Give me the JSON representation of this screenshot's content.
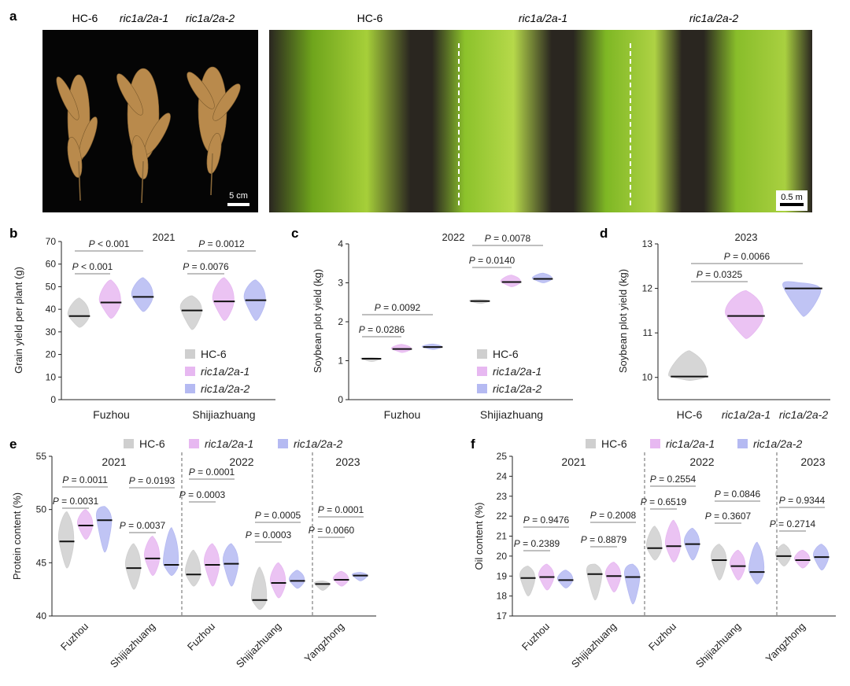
{
  "colors": {
    "hc6": "#cfcfcf",
    "ric1": "#e7b8f1",
    "ric2": "#b5baf2",
    "median": "#111111"
  },
  "panel_a": {
    "letter": "a",
    "photo1_labels": [
      "HC-6",
      "ric1a/2a-1",
      "ric1a/2a-2"
    ],
    "photo1_scale": "5 cm",
    "photo2_labels": [
      "HC-6",
      "ric1a/2a-1",
      "ric1a/2a-2"
    ],
    "photo2_scale": "0.5 m"
  },
  "chart_data": [
    {
      "panel": "b",
      "type": "violin",
      "title": "2021",
      "ylabel": "Grain yield per plant (g)",
      "ylim": [
        0,
        70
      ],
      "yticks": [
        "0",
        "10",
        "20",
        "30",
        "40",
        "50",
        "60",
        "70"
      ],
      "categories": [
        "Fuzhou",
        "Shijiazhuang"
      ],
      "series": [
        {
          "name": "HC-6",
          "medians": [
            37,
            39.5
          ],
          "mins": [
            32,
            31
          ],
          "maxs": [
            45,
            46
          ]
        },
        {
          "name": "ric1a/2a-1",
          "medians": [
            43,
            43.5
          ],
          "mins": [
            36,
            35
          ],
          "maxs": [
            53,
            54
          ]
        },
        {
          "name": "ric1a/2a-2",
          "medians": [
            45.5,
            44
          ],
          "mins": [
            39,
            35
          ],
          "maxs": [
            54,
            53
          ]
        }
      ],
      "pvalues": [
        {
          "cat": 0,
          "text": "P < 0.001",
          "to": 1
        },
        {
          "cat": 0,
          "text": "P < 0.001",
          "to": 2
        },
        {
          "cat": 1,
          "text": "P = 0.0076",
          "to": 1
        },
        {
          "cat": 1,
          "text": "P = 0.0012",
          "to": 2
        }
      ],
      "legend": [
        "HC-6",
        "ric1a/2a-1",
        "ric1a/2a-2"
      ]
    },
    {
      "panel": "c",
      "type": "violin",
      "title": "2022",
      "ylabel": "Soybean plot yield (kg)",
      "ylim": [
        0,
        4
      ],
      "yticks": [
        "0",
        "1",
        "2",
        "3",
        "4"
      ],
      "categories": [
        "Fuzhou",
        "Shijiazhuang"
      ],
      "series": [
        {
          "name": "HC-6",
          "medians": [
            1.05,
            2.53
          ],
          "mins": [
            0.98,
            2.47
          ],
          "maxs": [
            1.08,
            2.57
          ]
        },
        {
          "name": "ric1a/2a-1",
          "medians": [
            1.3,
            3.02
          ],
          "mins": [
            1.21,
            2.9
          ],
          "maxs": [
            1.42,
            3.2
          ]
        },
        {
          "name": "ric1a/2a-2",
          "medians": [
            1.35,
            3.1
          ],
          "mins": [
            1.29,
            3.0
          ],
          "maxs": [
            1.43,
            3.25
          ]
        }
      ],
      "pvalues": [
        {
          "cat": 0,
          "text": "P = 0.0286",
          "to": 1
        },
        {
          "cat": 0,
          "text": "P = 0.0092",
          "to": 2
        },
        {
          "cat": 1,
          "text": "P = 0.0140",
          "to": 1
        },
        {
          "cat": 1,
          "text": "P = 0.0078",
          "to": 2
        }
      ],
      "legend": [
        "HC-6",
        "ric1a/2a-1",
        "ric1a/2a-2"
      ]
    },
    {
      "panel": "d",
      "type": "violin",
      "title": "2023",
      "ylabel": "Soybean plot yield (kg)",
      "ylim": [
        9.5,
        13
      ],
      "yticks": [
        "10",
        "11",
        "12",
        "13"
      ],
      "categories": [
        "HC-6",
        "ric1a/2a-1",
        "ric1a/2a-2"
      ],
      "series": [
        {
          "name": "HC-6",
          "medians": [
            10.02
          ],
          "mins": [
            9.93
          ],
          "maxs": [
            10.6
          ]
        },
        {
          "name": "ric1a/2a-1",
          "medians": [
            11.38
          ],
          "mins": [
            10.87
          ],
          "maxs": [
            11.95
          ]
        },
        {
          "name": "ric1a/2a-2",
          "medians": [
            12.0
          ],
          "mins": [
            11.37
          ],
          "maxs": [
            12.12
          ]
        }
      ],
      "pvalues": [
        {
          "text": "P = 0.0325",
          "to": 1
        },
        {
          "text": "P = 0.0066",
          "to": 2
        }
      ]
    },
    {
      "panel": "e",
      "type": "violin",
      "ylabel": "Protein content (%)",
      "ylim": [
        40,
        55
      ],
      "yticks": [
        "40",
        "45",
        "50",
        "55"
      ],
      "legend": [
        "HC-6",
        "ric1a/2a-1",
        "ric1a/2a-2"
      ],
      "groups": [
        {
          "year": "2021",
          "sites": [
            {
              "name": "Fuzhou",
              "medians": [
                47.0,
                48.5,
                49.0
              ],
              "mins": [
                44.5,
                47.2,
                46.0
              ],
              "maxs": [
                49.8,
                50.0,
                50.3
              ],
              "p": [
                "P = 0.0031",
                "P = 0.0011"
              ]
            },
            {
              "name": "Shijiazhuang",
              "medians": [
                44.5,
                45.4,
                44.8
              ],
              "mins": [
                42.5,
                43.8,
                43.8
              ],
              "maxs": [
                46.8,
                47.5,
                48.3
              ],
              "p": [
                "P = 0.0037",
                "P = 0.0193"
              ]
            }
          ]
        },
        {
          "year": "2022",
          "sites": [
            {
              "name": "Fuzhou",
              "medians": [
                43.9,
                44.8,
                44.9
              ],
              "mins": [
                42.8,
                42.8,
                42.8
              ],
              "maxs": [
                46.2,
                46.8,
                46.8
              ],
              "p": [
                "P = 0.0003",
                "P = 0.0001"
              ]
            },
            {
              "name": "Shijiazhuang",
              "medians": [
                41.5,
                43.1,
                43.3
              ],
              "mins": [
                40.6,
                41.7,
                42.6
              ],
              "maxs": [
                44.6,
                45.0,
                44.3
              ],
              "p": [
                "P = 0.0003",
                "P = 0.0005"
              ]
            }
          ]
        },
        {
          "year": "2023",
          "sites": [
            {
              "name": "Yangzhong",
              "medians": [
                43.0,
                43.4,
                43.8
              ],
              "mins": [
                42.4,
                42.8,
                43.3
              ],
              "maxs": [
                43.3,
                44.2,
                44.1
              ],
              "p": [
                "P = 0.0060",
                "P = 0.0001"
              ]
            }
          ]
        }
      ]
    },
    {
      "panel": "f",
      "type": "violin",
      "ylabel": "Oil content (%)",
      "ylim": [
        17,
        25
      ],
      "yticks": [
        "17",
        "18",
        "19",
        "20",
        "21",
        "22",
        "23",
        "24",
        "25"
      ],
      "legend": [
        "HC-6",
        "ric1a/2a-1",
        "ric1a/2a-2"
      ],
      "groups": [
        {
          "year": "2021",
          "sites": [
            {
              "name": "Fuzhou",
              "medians": [
                18.9,
                18.95,
                18.8
              ],
              "mins": [
                18.0,
                18.3,
                18.4
              ],
              "maxs": [
                19.5,
                19.6,
                19.3
              ],
              "p": [
                "P = 0.2389",
                "P = 0.9476"
              ]
            },
            {
              "name": "Shijiazhuang",
              "medians": [
                19.1,
                19.0,
                18.95
              ],
              "mins": [
                17.8,
                18.2,
                17.6
              ],
              "maxs": [
                19.6,
                19.7,
                19.6
              ],
              "p": [
                "P = 0.8879",
                "P = 0.2008"
              ]
            }
          ]
        },
        {
          "year": "2022",
          "sites": [
            {
              "name": "Fuzhou",
              "medians": [
                20.4,
                20.5,
                20.6
              ],
              "mins": [
                19.8,
                19.7,
                19.8
              ],
              "maxs": [
                21.5,
                21.8,
                21.4
              ],
              "p": [
                "P = 0.6519",
                "P = 0.2554"
              ]
            },
            {
              "name": "Shijiazhuang",
              "medians": [
                19.8,
                19.5,
                19.2
              ],
              "mins": [
                18.8,
                18.8,
                18.6
              ],
              "maxs": [
                20.6,
                20.3,
                20.7
              ],
              "p": [
                "P = 0.3607",
                "P = 0.0846"
              ]
            }
          ]
        },
        {
          "year": "2023",
          "sites": [
            {
              "name": "Yangzhong",
              "medians": [
                20.0,
                19.8,
                19.95
              ],
              "mins": [
                19.5,
                19.4,
                19.3
              ],
              "maxs": [
                20.6,
                20.3,
                20.6
              ],
              "p": [
                "P = 0.2714",
                "P = 0.9344"
              ]
            }
          ]
        }
      ]
    }
  ]
}
